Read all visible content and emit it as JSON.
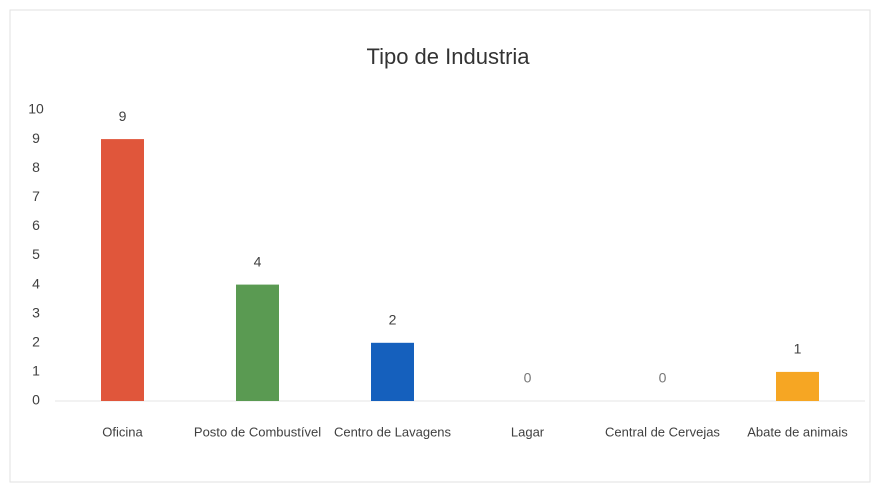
{
  "chart_data": {
    "type": "bar",
    "title": "Tipo de Industria",
    "categories": [
      "Oficina",
      "Posto de Combustível",
      "Centro de Lavagens",
      "Lagar",
      "Central de Cervejas",
      "Abate de animais"
    ],
    "values": [
      9,
      4,
      2,
      0,
      0,
      1
    ],
    "colors": [
      "#e0563b",
      "#5a9a52",
      "#1560bd",
      "#a5a5a5",
      "#4472c4",
      "#f6a623"
    ],
    "ylim": [
      0,
      10
    ],
    "yticks": [
      0,
      1,
      2,
      3,
      4,
      5,
      6,
      7,
      8,
      9,
      10
    ],
    "grid": false
  }
}
